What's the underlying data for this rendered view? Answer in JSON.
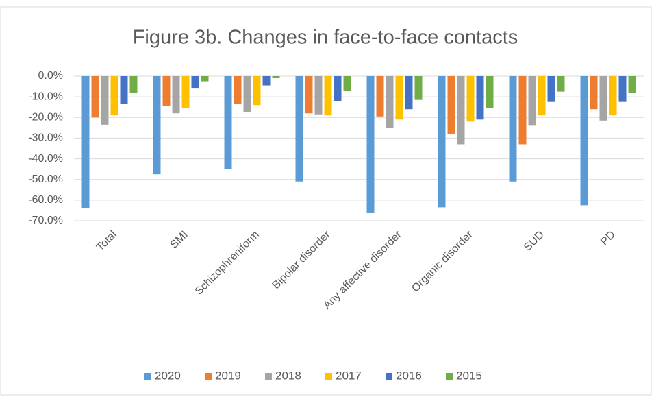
{
  "chart_data": {
    "type": "bar",
    "title": "Figure 3b. Changes in face-to-face contacts",
    "categories": [
      "Total",
      "SMI",
      "Schizophreniform",
      "Bipolar disorder",
      "Any affective disorder",
      "Organic disorder",
      "SUD",
      "PD"
    ],
    "series": [
      {
        "name": "2020",
        "color": "#5b9bd5",
        "values": [
          -64,
          -47.5,
          -45,
          -51,
          -66,
          -63.5,
          -51,
          -62.5
        ]
      },
      {
        "name": "2019",
        "color": "#ed7d31",
        "values": [
          -20,
          -14.5,
          -13.5,
          -18,
          -19.5,
          -28,
          -33,
          -16
        ]
      },
      {
        "name": "2018",
        "color": "#a5a5a5",
        "values": [
          -23.5,
          -18,
          -17.5,
          -18.5,
          -25,
          -33,
          -24,
          -21.5
        ]
      },
      {
        "name": "2017",
        "color": "#ffc000",
        "values": [
          -19,
          -15.5,
          -14,
          -19,
          -21,
          -22,
          -19,
          -19
        ]
      },
      {
        "name": "2016",
        "color": "#4472c4",
        "values": [
          -13.5,
          -6,
          -4.5,
          -12,
          -16,
          -21,
          -12.5,
          -12.5
        ]
      },
      {
        "name": "2015",
        "color": "#70ad47",
        "values": [
          -8,
          -2.5,
          -1,
          -7,
          -11.5,
          -15.5,
          -7.5,
          -8
        ]
      }
    ],
    "ylim": [
      -70,
      0
    ],
    "yticks": [
      {
        "value": 0,
        "label": "0.0%"
      },
      {
        "value": -10,
        "label": "-10.0%"
      },
      {
        "value": -20,
        "label": "-20.0%"
      },
      {
        "value": -30,
        "label": "-30.0%"
      },
      {
        "value": -40,
        "label": "-40.0%"
      },
      {
        "value": -50,
        "label": "-50.0%"
      },
      {
        "value": -60,
        "label": "-60.0%"
      },
      {
        "value": -70,
        "label": "-70.0%"
      }
    ],
    "grid": true,
    "legend": "bottom"
  }
}
